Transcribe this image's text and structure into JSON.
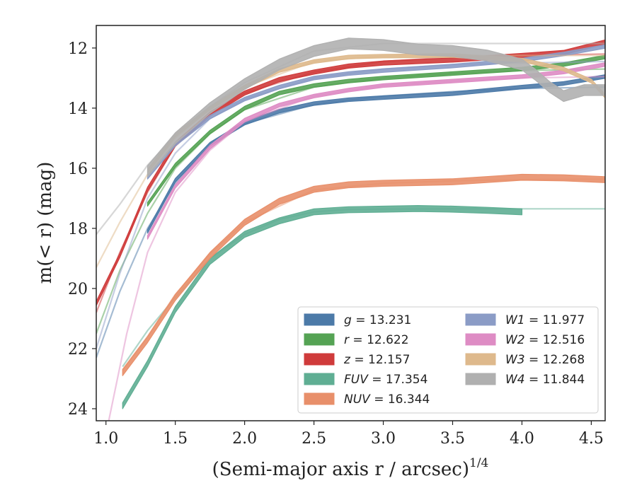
{
  "chart_data": {
    "type": "line",
    "xlabel": "(Semi-major axis r / arcsec)",
    "xlabel_sup": "1/4",
    "ylabel": "m(< r) (mag)",
    "xlim": [
      0.93,
      4.6
    ],
    "ylim": [
      24.4,
      11.25
    ],
    "y_inverted": true,
    "grid": false,
    "legend_placement": "lower-right",
    "x_ticks": [
      "1.0",
      "1.5",
      "2.0",
      "2.5",
      "3.0",
      "3.5",
      "4.0",
      "4.5"
    ],
    "y_ticks": [
      "12",
      "14",
      "16",
      "18",
      "20",
      "22",
      "24"
    ],
    "series": [
      {
        "name": "g = 13.231",
        "label_var": "g",
        "label_val": "13.231",
        "color": "#4c7aa8",
        "width": 0.06,
        "obs": [
          [
            1.3,
            18.1
          ],
          [
            1.5,
            16.4
          ],
          [
            1.75,
            15.2
          ],
          [
            2.0,
            14.5
          ],
          [
            2.25,
            14.1
          ],
          [
            2.5,
            13.85
          ],
          [
            2.75,
            13.72
          ],
          [
            3.0,
            13.65
          ],
          [
            3.5,
            13.52
          ],
          [
            4.0,
            13.3
          ],
          [
            4.3,
            13.18
          ],
          [
            4.6,
            12.95
          ]
        ],
        "model": [
          [
            0.93,
            22.3
          ],
          [
            1.1,
            20.1
          ],
          [
            1.3,
            18.0
          ],
          [
            1.5,
            16.5
          ],
          [
            1.75,
            15.25
          ],
          [
            2.0,
            14.52
          ],
          [
            2.5,
            13.88
          ],
          [
            3.0,
            13.6
          ],
          [
            3.5,
            13.45
          ],
          [
            4.0,
            13.35
          ],
          [
            4.6,
            13.3
          ]
        ]
      },
      {
        "name": "r = 12.622",
        "label_var": "r",
        "label_val": "12.622",
        "color": "#55a354",
        "width": 0.06,
        "obs": [
          [
            1.3,
            17.2
          ],
          [
            1.5,
            15.9
          ],
          [
            1.75,
            14.8
          ],
          [
            2.0,
            14.0
          ],
          [
            2.25,
            13.5
          ],
          [
            2.5,
            13.25
          ],
          [
            2.75,
            13.1
          ],
          [
            3.0,
            13.0
          ],
          [
            3.5,
            12.85
          ],
          [
            4.0,
            12.7
          ],
          [
            4.3,
            12.55
          ],
          [
            4.6,
            12.3
          ]
        ],
        "model": [
          [
            0.93,
            21.5
          ],
          [
            1.1,
            19.4
          ],
          [
            1.3,
            17.5
          ],
          [
            1.5,
            16.0
          ],
          [
            1.75,
            14.85
          ],
          [
            2.0,
            14.05
          ],
          [
            2.5,
            13.3
          ],
          [
            3.0,
            13.0
          ],
          [
            3.5,
            12.85
          ],
          [
            4.0,
            12.75
          ],
          [
            4.6,
            12.7
          ]
        ]
      },
      {
        "name": "z = 12.157",
        "label_var": "z",
        "label_val": "12.157",
        "color": "#cf3b3b",
        "width": 0.07,
        "obs": [
          [
            0.93,
            20.5
          ],
          [
            1.1,
            18.9
          ],
          [
            1.3,
            16.7
          ],
          [
            1.5,
            15.2
          ],
          [
            1.75,
            14.2
          ],
          [
            2.0,
            13.5
          ],
          [
            2.25,
            13.05
          ],
          [
            2.5,
            12.8
          ],
          [
            2.75,
            12.6
          ],
          [
            3.0,
            12.5
          ],
          [
            3.5,
            12.4
          ],
          [
            4.0,
            12.25
          ],
          [
            4.3,
            12.15
          ],
          [
            4.6,
            11.8
          ]
        ],
        "model": [
          [
            0.93,
            20.8
          ],
          [
            1.1,
            18.8
          ],
          [
            1.3,
            16.8
          ],
          [
            1.5,
            15.25
          ],
          [
            1.75,
            14.2
          ],
          [
            2.0,
            13.5
          ],
          [
            2.5,
            12.8
          ],
          [
            3.0,
            12.45
          ],
          [
            3.5,
            12.3
          ],
          [
            4.0,
            12.25
          ],
          [
            4.6,
            12.2
          ]
        ]
      },
      {
        "name": "FUV = 17.354",
        "label_var": "FUV",
        "label_val": "17.354",
        "color": "#5fae93",
        "width": 0.1,
        "obs": [
          [
            1.12,
            23.9
          ],
          [
            1.3,
            22.5
          ],
          [
            1.5,
            20.7
          ],
          [
            1.75,
            19.1
          ],
          [
            2.0,
            18.2
          ],
          [
            2.25,
            17.75
          ],
          [
            2.5,
            17.45
          ],
          [
            2.75,
            17.38
          ],
          [
            3.0,
            17.36
          ],
          [
            3.25,
            17.34
          ],
          [
            3.5,
            17.36
          ],
          [
            3.75,
            17.4
          ],
          [
            4.0,
            17.45
          ]
        ],
        "model": [
          [
            1.12,
            22.6
          ],
          [
            1.3,
            21.4
          ],
          [
            1.5,
            20.3
          ],
          [
            1.75,
            19.0
          ],
          [
            2.0,
            18.2
          ],
          [
            2.25,
            17.7
          ],
          [
            2.5,
            17.45
          ],
          [
            2.75,
            17.37
          ],
          [
            3.0,
            17.36
          ],
          [
            3.5,
            17.35
          ],
          [
            4.0,
            17.35
          ],
          [
            4.6,
            17.35
          ]
        ]
      },
      {
        "name": "NUV = 16.344",
        "label_var": "NUV",
        "label_val": "16.344",
        "color": "#e88f6a",
        "width": 0.1,
        "obs": [
          [
            1.12,
            22.8
          ],
          [
            1.3,
            21.7
          ],
          [
            1.5,
            20.3
          ],
          [
            1.75,
            18.9
          ],
          [
            2.0,
            17.8
          ],
          [
            2.25,
            17.1
          ],
          [
            2.5,
            16.7
          ],
          [
            2.75,
            16.55
          ],
          [
            3.0,
            16.5
          ],
          [
            3.5,
            16.45
          ],
          [
            4.0,
            16.3
          ],
          [
            4.3,
            16.32
          ],
          [
            4.6,
            16.38
          ]
        ],
        "model": [
          [
            1.12,
            22.7
          ],
          [
            1.3,
            21.6
          ],
          [
            1.5,
            20.2
          ],
          [
            1.75,
            18.85
          ],
          [
            2.0,
            17.8
          ],
          [
            2.5,
            16.72
          ],
          [
            3.0,
            16.5
          ],
          [
            3.5,
            16.42
          ],
          [
            4.0,
            16.38
          ],
          [
            4.6,
            16.36
          ]
        ]
      },
      {
        "name": "W1 = 11.977",
        "label_var": "W1",
        "label_val": "11.977",
        "color": "#8b9cc6",
        "width": 0.06,
        "obs": [
          [
            1.3,
            16.3
          ],
          [
            1.5,
            15.2
          ],
          [
            1.75,
            14.3
          ],
          [
            2.0,
            13.7
          ],
          [
            2.25,
            13.3
          ],
          [
            2.5,
            13.0
          ],
          [
            2.75,
            12.85
          ],
          [
            3.0,
            12.75
          ],
          [
            3.5,
            12.6
          ],
          [
            4.0,
            12.4
          ],
          [
            4.3,
            12.2
          ],
          [
            4.6,
            11.95
          ]
        ],
        "model": [
          [
            0.93,
            22.0
          ],
          [
            1.1,
            19.5
          ],
          [
            1.3,
            17.0
          ],
          [
            1.5,
            15.5
          ],
          [
            1.75,
            14.35
          ],
          [
            2.0,
            13.7
          ],
          [
            2.5,
            13.0
          ],
          [
            3.0,
            12.7
          ],
          [
            3.5,
            12.55
          ],
          [
            4.0,
            12.5
          ],
          [
            4.6,
            12.45
          ]
        ]
      },
      {
        "name": "W2 = 12.516",
        "label_var": "W2",
        "label_val": "12.516",
        "color": "#de8cc4",
        "width": 0.06,
        "obs": [
          [
            1.3,
            18.3
          ],
          [
            1.5,
            16.6
          ],
          [
            1.75,
            15.3
          ],
          [
            2.0,
            14.4
          ],
          [
            2.25,
            13.9
          ],
          [
            2.5,
            13.6
          ],
          [
            2.75,
            13.4
          ],
          [
            3.0,
            13.25
          ],
          [
            3.5,
            13.1
          ],
          [
            4.0,
            12.95
          ],
          [
            4.3,
            12.8
          ],
          [
            4.6,
            12.55
          ]
        ],
        "model": [
          [
            1.02,
            24.4
          ],
          [
            1.15,
            21.5
          ],
          [
            1.3,
            18.8
          ],
          [
            1.5,
            16.8
          ],
          [
            1.75,
            15.4
          ],
          [
            2.0,
            14.45
          ],
          [
            2.5,
            13.6
          ],
          [
            3.0,
            13.25
          ],
          [
            3.5,
            13.1
          ],
          [
            4.0,
            13.0
          ],
          [
            4.6,
            12.95
          ]
        ]
      },
      {
        "name": "W3 = 12.268",
        "label_var": "W3",
        "label_val": "12.268",
        "color": "#deb98c",
        "width": 0.06,
        "obs": [
          [
            1.3,
            16.1
          ],
          [
            1.5,
            14.9
          ],
          [
            1.75,
            14.0
          ],
          [
            2.0,
            13.3
          ],
          [
            2.25,
            12.75
          ],
          [
            2.5,
            12.45
          ],
          [
            2.75,
            12.3
          ],
          [
            3.0,
            12.27
          ],
          [
            3.5,
            12.25
          ],
          [
            4.0,
            12.4
          ],
          [
            4.3,
            12.7
          ],
          [
            4.5,
            13.1
          ],
          [
            4.6,
            13.6
          ]
        ],
        "model": [
          [
            0.93,
            19.3
          ],
          [
            1.1,
            17.8
          ],
          [
            1.3,
            16.2
          ],
          [
            1.5,
            15.0
          ],
          [
            1.75,
            14.0
          ],
          [
            2.0,
            13.3
          ],
          [
            2.5,
            12.45
          ],
          [
            3.0,
            12.27
          ],
          [
            3.5,
            12.25
          ],
          [
            4.0,
            12.25
          ],
          [
            4.6,
            12.25
          ]
        ]
      },
      {
        "name": "W4 = 11.844",
        "label_var": "W4",
        "label_val": "11.844",
        "color": "#b0b0b0",
        "width": 0.18,
        "obs": [
          [
            1.3,
            16.1
          ],
          [
            1.5,
            15.0
          ],
          [
            1.75,
            14.0
          ],
          [
            2.0,
            13.2
          ],
          [
            2.25,
            12.55
          ],
          [
            2.5,
            12.1
          ],
          [
            2.75,
            11.85
          ],
          [
            3.0,
            11.9
          ],
          [
            3.25,
            12.05
          ],
          [
            3.5,
            12.1
          ],
          [
            3.75,
            12.25
          ],
          [
            4.0,
            12.55
          ],
          [
            4.1,
            12.9
          ],
          [
            4.2,
            13.3
          ],
          [
            4.3,
            13.6
          ],
          [
            4.45,
            13.4
          ],
          [
            4.6,
            13.4
          ]
        ],
        "model": [
          [
            0.93,
            18.2
          ],
          [
            1.1,
            17.2
          ],
          [
            1.3,
            15.9
          ],
          [
            1.5,
            14.9
          ],
          [
            1.75,
            13.95
          ],
          [
            2.0,
            13.15
          ],
          [
            2.5,
            12.1
          ],
          [
            3.0,
            11.85
          ],
          [
            3.5,
            11.85
          ],
          [
            4.0,
            11.85
          ],
          [
            4.6,
            11.85
          ]
        ]
      }
    ]
  }
}
